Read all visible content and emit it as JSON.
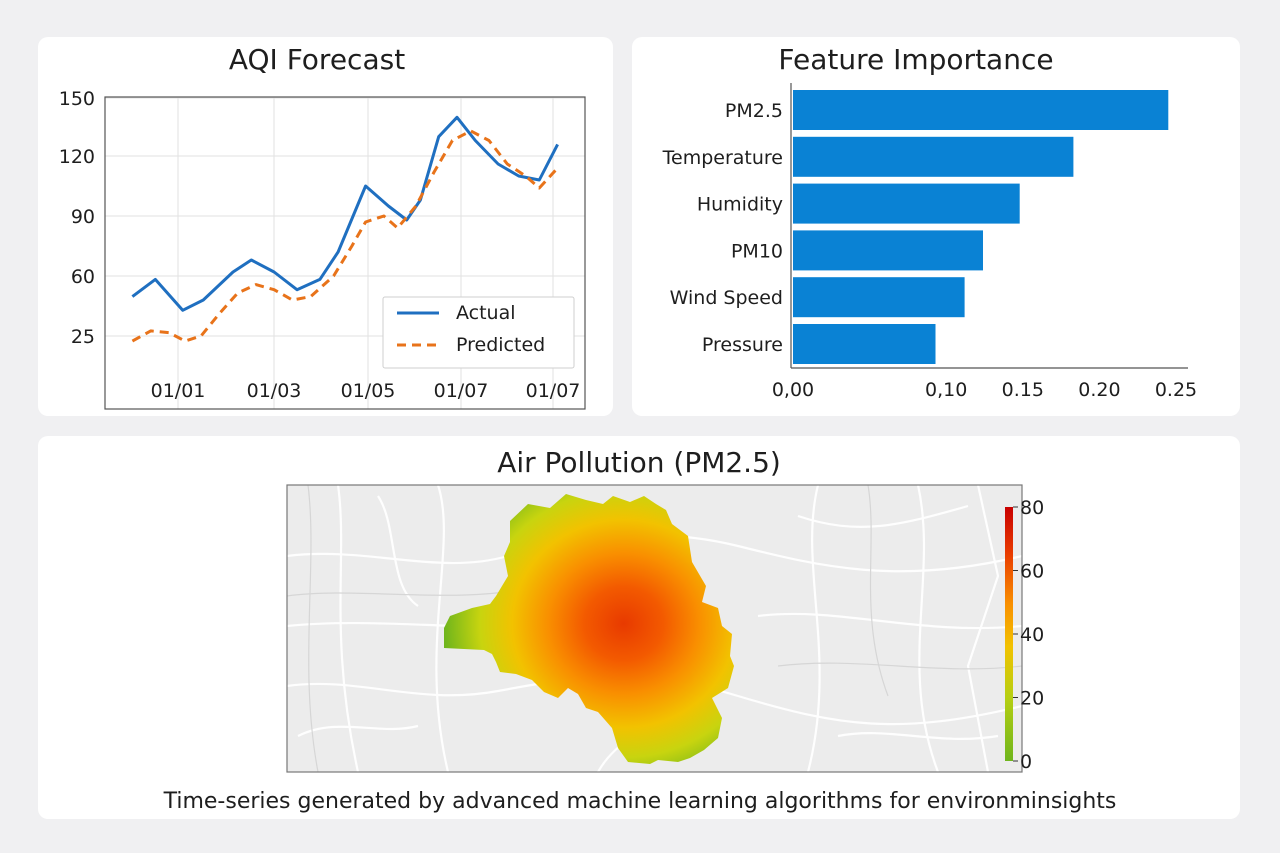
{
  "chart_data": [
    {
      "type": "line",
      "title": "AQI Forecast",
      "xlabel": "",
      "ylabel": "",
      "x_ticks": [
        "01/01",
        "01/03",
        "01/05",
        "01/07",
        "01/07"
      ],
      "y_ticks": [
        "25",
        "60",
        "90",
        "120",
        "150"
      ],
      "ylim": [
        15,
        150
      ],
      "grid": true,
      "legend_position": "bottom-right",
      "series": [
        {
          "name": "Actual",
          "color": "#1f6fc0",
          "style": "solid",
          "x": [
            0,
            0.5,
            1.1,
            1.55,
            2.2,
            2.6,
            3.1,
            3.6,
            4.1,
            4.5,
            5.1,
            5.6,
            6.0,
            6.3,
            6.7,
            7.1,
            7.5,
            8.0,
            8.45,
            8.9,
            9.3
          ],
          "y": [
            48,
            58,
            40,
            46,
            62,
            68,
            62,
            52,
            58,
            72,
            105,
            95,
            88,
            98,
            130,
            140,
            128,
            116,
            110,
            108,
            126
          ]
        },
        {
          "name": "Predicted",
          "color": "#e8731a",
          "style": "dashed",
          "x": [
            0,
            0.4,
            0.8,
            1.15,
            1.5,
            1.9,
            2.3,
            2.7,
            3.1,
            3.5,
            3.9,
            4.4,
            4.8,
            5.1,
            5.5,
            5.8,
            6.2,
            6.6,
            7.0,
            7.4,
            7.8,
            8.2,
            8.6,
            8.9,
            9.3
          ],
          "y": [
            22,
            28,
            27,
            22,
            25,
            38,
            50,
            55,
            52,
            46,
            48,
            60,
            75,
            87,
            90,
            84,
            95,
            112,
            128,
            133,
            128,
            116,
            110,
            104,
            114
          ]
        }
      ]
    },
    {
      "type": "bar",
      "orientation": "horizontal",
      "title": "Feature Importance",
      "categories": [
        "PM2.5",
        "Temperature",
        "Humidity",
        "PM10",
        "Wind Speed",
        "Pressure"
      ],
      "values": [
        0.245,
        0.183,
        0.148,
        0.124,
        0.112,
        0.093
      ],
      "x_ticks": [
        "0,00",
        "0,10",
        "0.15",
        "0.20",
        "0.25"
      ],
      "xlim": [
        0,
        0.25
      ],
      "bar_color": "#0a82d4",
      "grid": false
    },
    {
      "type": "heatmap",
      "title": "Air Pollution (PM2.5)",
      "colorbar_ticks": [
        "0",
        "20",
        "40",
        "60",
        "80"
      ],
      "colorbar_range": [
        0,
        80
      ],
      "colormap": [
        "#6fb51c",
        "#c8d40f",
        "#f2c200",
        "#f98f00",
        "#e83a00",
        "#c80000"
      ]
    }
  ],
  "footer_text": "Time-series generated by advanced machine learning algorithms for environminsights"
}
